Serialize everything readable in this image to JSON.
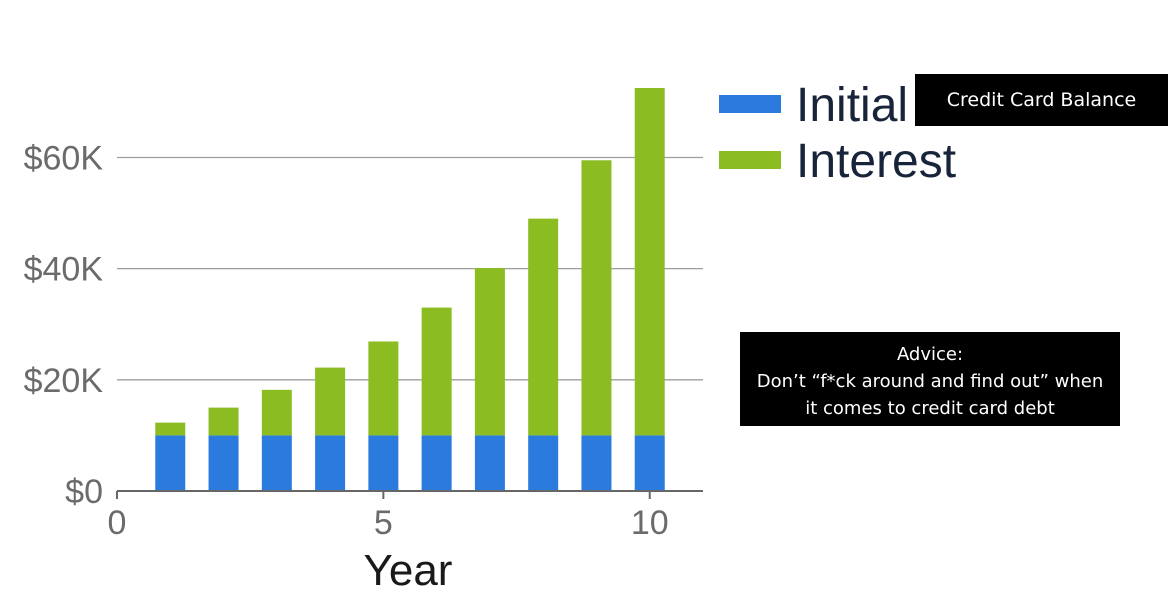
{
  "chart_data": {
    "type": "bar",
    "stacked": true,
    "xlabel": "Year",
    "ylabel": "",
    "x": [
      1,
      2,
      3,
      4,
      5,
      6,
      7,
      8,
      9,
      10
    ],
    "series": [
      {
        "name": "Initial",
        "color": "#2b7bde",
        "values": [
          10000,
          10000,
          10000,
          10000,
          10000,
          10000,
          10000,
          10000,
          10000,
          10000
        ]
      },
      {
        "name": "Interest",
        "color": "#8bbd23",
        "values": [
          2300,
          5000,
          8200,
          12200,
          16900,
          23000,
          30100,
          39000,
          49500,
          62500
        ]
      }
    ],
    "xlim": [
      0,
      11
    ],
    "ylim": [
      0,
      72500
    ],
    "xticks": [
      0,
      5,
      10
    ],
    "xtick_labels": [
      "0",
      "5",
      "10"
    ],
    "yticks": [
      0,
      20000,
      40000,
      60000
    ],
    "ytick_labels": [
      "$0",
      "$20K",
      "$40K",
      "$60K"
    ],
    "grid": true,
    "legend": {
      "placement": "top-right",
      "entries": [
        "Initial",
        "Interest"
      ]
    }
  },
  "annotations": {
    "title_label": "Credit Card Balance",
    "advice": [
      "Advice:",
      "Don’t “f*ck around and find out” when",
      "it comes to credit card debt"
    ]
  }
}
